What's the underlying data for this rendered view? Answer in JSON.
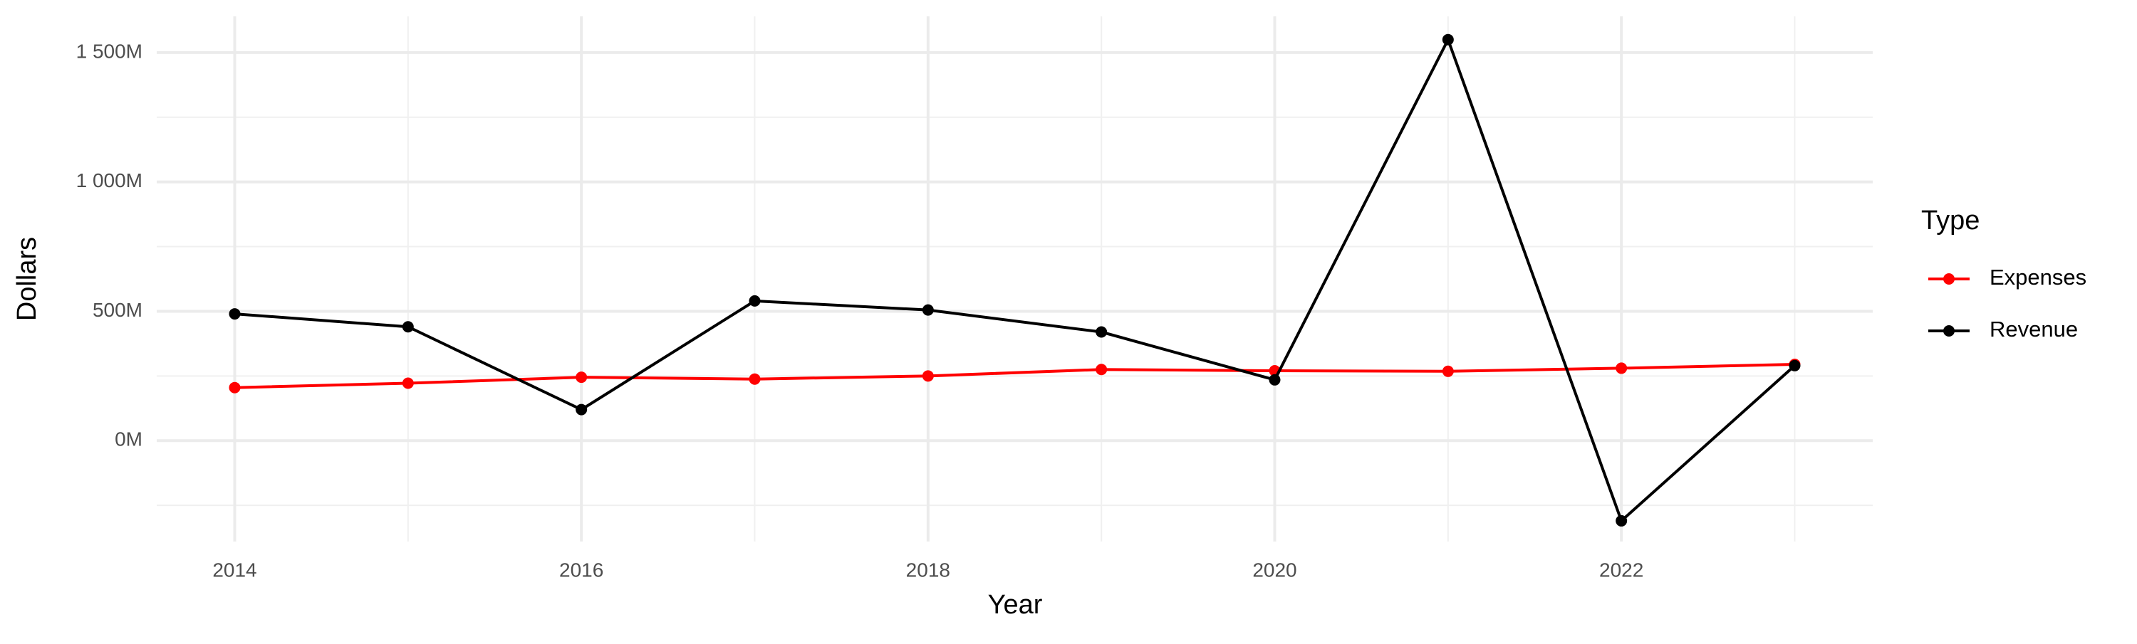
{
  "chart_data": {
    "type": "line",
    "x_label": "Year",
    "y_label": "Dollars",
    "legend_title": "Type",
    "x": [
      2014,
      2015,
      2016,
      2017,
      2018,
      2019,
      2020,
      2021,
      2022,
      2023
    ],
    "series": [
      {
        "name": "Expenses",
        "color": "#ff0000",
        "values": [
          205,
          222,
          245,
          238,
          250,
          275,
          270,
          268,
          280,
          295
        ]
      },
      {
        "name": "Revenue",
        "color": "#000000",
        "values": [
          490,
          440,
          120,
          540,
          505,
          420,
          235,
          1550,
          -310,
          290
        ]
      }
    ],
    "xlim": [
      2013.55,
      2023.45
    ],
    "xticks": [
      2014,
      2016,
      2018,
      2020,
      2022
    ],
    "x_minor_grid": [
      2015,
      2017,
      2019,
      2021,
      2023
    ],
    "ylim": [
      -390,
      1640
    ],
    "yticks": [
      {
        "value": 0,
        "label": "0M"
      },
      {
        "value": 500,
        "label": "500M"
      },
      {
        "value": 1000,
        "label": "1 000M"
      },
      {
        "value": 1500,
        "label": "1 500M"
      }
    ],
    "y_minor_grid": [
      -250,
      250,
      750,
      1250
    ],
    "grid": true,
    "legend_position": "right"
  }
}
